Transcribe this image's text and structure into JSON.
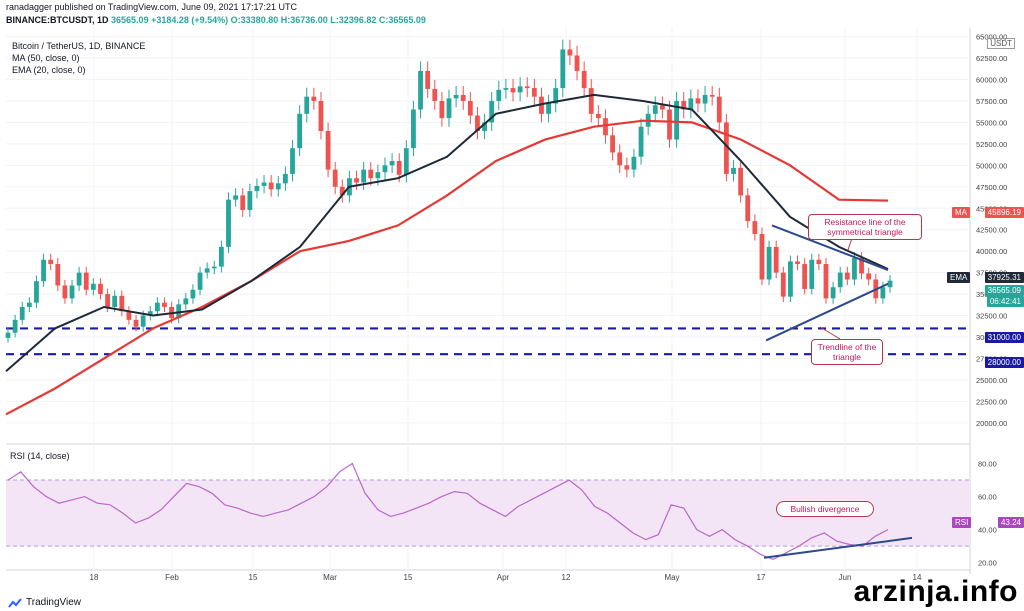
{
  "header": {
    "publisher_line": "ranadagger published on TradingView.com, June 09, 2021 17:17:21 UTC",
    "symbol": "BINANCE:BTCUSDT, 1D",
    "price": "36565.09",
    "change": "+3184.28 (+9.54%)",
    "open": "O:33380.80",
    "high": "H:36736.00",
    "low": "L:32396.82",
    "close": "C:36565.09"
  },
  "legend": {
    "title": "Bitcoin / TetherUS, 1D, BINANCE",
    "ma": "MA (50, close, 0)",
    "ema": "EMA (20, close, 0)"
  },
  "rsi_legend": "RSI (14, close)",
  "currency_label": "USDT",
  "price_tags": {
    "ma": {
      "label": "MA",
      "value": "45896.19",
      "color": "#ef5350"
    },
    "ema": {
      "label": "EMA",
      "value": "37925.31",
      "color": "#1f2937"
    },
    "last": {
      "value": "36565.09",
      "timer": "06:42:41",
      "color": "#26a69a"
    },
    "level1": {
      "value": "31000.00",
      "color": "#1a1aa6"
    },
    "level2": {
      "value": "28000.00",
      "color": "#1a1aa6"
    },
    "rsi": {
      "label": "RSI",
      "value": "43.24",
      "color": "#ab47bc"
    }
  },
  "annotations": {
    "resistance": "Resistance line of the symmetrical triangle",
    "trendline": "Trendline of the triangle",
    "divergence": "Bullish divergence"
  },
  "footer": {
    "brand": "TradingView",
    "watermark": "arzinja.info"
  },
  "colors": {
    "up": "#26a69a",
    "down": "#ef5350",
    "ma": "#e53935",
    "ema": "#1f2937",
    "rsi": "#b868c9",
    "rsi_band": "#f3e5f5",
    "level": "#1a1aa6",
    "trend": "#2c4a8a"
  },
  "chart_data": [
    {
      "type": "candlestick",
      "title": "Bitcoin / TetherUS, 1D, BINANCE",
      "ylim": [
        18000,
        66000
      ],
      "y_ticks": [
        20000,
        22500,
        25000,
        27500,
        30000,
        32500,
        35000,
        37500,
        40000,
        42500,
        45000,
        47500,
        50000,
        52500,
        55000,
        57500,
        60000,
        62500,
        65000
      ],
      "x_tick_labels": [
        "18",
        "Feb",
        "15",
        "Mar",
        "15",
        "Apr",
        "12",
        "May",
        "17",
        "Jun",
        "14"
      ],
      "horizontal_levels": [
        31000,
        28000
      ],
      "closes_approx": [
        30500,
        32000,
        33500,
        34000,
        36500,
        39000,
        38500,
        36000,
        34500,
        36000,
        37500,
        35500,
        36200,
        35000,
        33500,
        34800,
        33000,
        32000,
        31200,
        32500,
        33000,
        34000,
        33500,
        32200,
        33800,
        34500,
        35500,
        37500,
        38000,
        38200,
        40500,
        46000,
        46500,
        44800,
        47000,
        47600,
        48000,
        47200,
        47900,
        49000,
        52000,
        56000,
        58000,
        57500,
        54000,
        49500,
        47500,
        46500,
        48500,
        48000,
        49500,
        48500,
        49200,
        50000,
        50500,
        48900,
        52000,
        56500,
        61000,
        58900,
        57500,
        55500,
        57800,
        58200,
        57500,
        55800,
        54000,
        55000,
        57500,
        58800,
        59000,
        58500,
        59200,
        59000,
        58000,
        56000,
        57200,
        59000,
        63500,
        62800,
        61000,
        59000,
        56000,
        55500,
        53500,
        51500,
        50000,
        49500,
        51000,
        54500,
        56000,
        57000,
        56500,
        53000,
        57500,
        56500,
        57800,
        57200,
        58200,
        58000,
        55000,
        49000,
        49700,
        46500,
        43500,
        42000,
        36700,
        40500,
        37500,
        34700,
        38800,
        38500,
        35600,
        39000,
        38500,
        34500,
        35800,
        37500,
        36700,
        39200,
        37400,
        36700,
        34500,
        35800,
        36565
      ],
      "ma50_approx": [
        21000,
        24000,
        27500,
        31000,
        33500,
        36500,
        40000,
        41200,
        43000,
        46500,
        50500,
        53000,
        54500,
        55200,
        55000,
        53000,
        50000,
        46000,
        45896
      ],
      "ema20_approx": [
        26000,
        31000,
        33500,
        32500,
        33200,
        36500,
        40500,
        47500,
        48500,
        51000,
        56000,
        57200,
        58200,
        57500,
        56500,
        50500,
        44000,
        40500,
        37925
      ]
    },
    {
      "type": "line",
      "title": "RSI (14, close)",
      "ylim": [
        18,
        90
      ],
      "y_ticks": [
        20,
        40,
        60,
        80
      ],
      "band": [
        30,
        70
      ],
      "values_approx": [
        70,
        75,
        66,
        60,
        56,
        58,
        60,
        56,
        55,
        50,
        44,
        47,
        52,
        60,
        68,
        66,
        62,
        55,
        53,
        50,
        48,
        50,
        52,
        56,
        60,
        66,
        75,
        80,
        62,
        52,
        48,
        50,
        53,
        56,
        60,
        63,
        62,
        56,
        52,
        48,
        54,
        58,
        62,
        66,
        70,
        64,
        54,
        50,
        44,
        38,
        34,
        37,
        55,
        53,
        40,
        36,
        40,
        34,
        30,
        25,
        22,
        26,
        30,
        35,
        38,
        33,
        31,
        30,
        36,
        40
      ]
    }
  ]
}
